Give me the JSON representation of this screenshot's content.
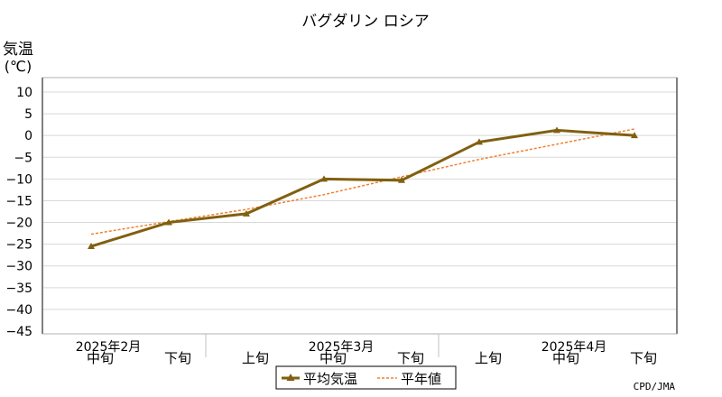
{
  "chart_data": {
    "type": "line",
    "title": "バグダリン ロシア",
    "ylabel_line1": "気温",
    "ylabel_line2": "(℃)",
    "ylim": [
      -45,
      10
    ],
    "yticks": [
      10,
      5,
      0,
      -5,
      -10,
      -15,
      -20,
      -25,
      -30,
      -35,
      -40,
      -45
    ],
    "categories": [
      "中旬",
      "下旬",
      "上旬",
      "中旬",
      "下旬",
      "上旬",
      "中旬",
      "下旬"
    ],
    "month_labels": [
      {
        "label": "2025年2月",
        "at": 0.5
      },
      {
        "label": "2025年3月",
        "at": 3.5
      },
      {
        "label": "2025年4月",
        "at": 6.5
      }
    ],
    "series": [
      {
        "name": "平均気温",
        "values": [
          -25.5,
          -20.0,
          -18.0,
          -10.0,
          -10.3,
          -1.5,
          1.2,
          0.0
        ],
        "color": "#806010"
      },
      {
        "name": "平年値",
        "values": [
          -22.7,
          -19.8,
          -17.0,
          -13.6,
          -9.5,
          -5.5,
          -2.0,
          1.5
        ],
        "color": "#f08030"
      }
    ],
    "grid": true,
    "legend_position": "bottom-center",
    "credit": "CPD/JMA"
  }
}
